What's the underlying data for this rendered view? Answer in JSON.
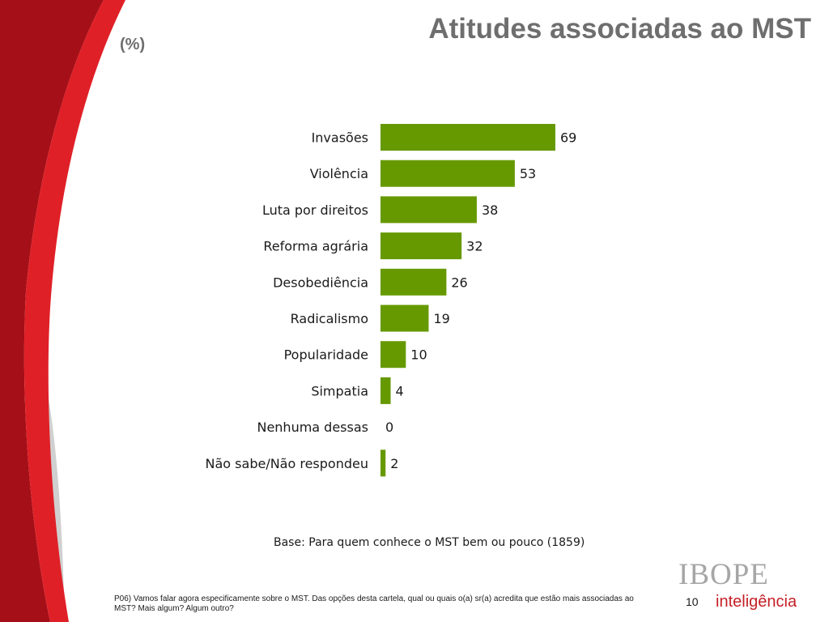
{
  "slide": {
    "title": "Atitudes associadas ao MST",
    "unit_label": "(%)",
    "base_note": "Base: Para quem conhece o MST bem ou pouco (1859)",
    "question": "P06) Vamos falar agora especificamente sobre o MST. Das opções desta cartela, qual ou quais o(a) sr(a) acredita que estão mais associadas ao MST? Mais algum? Algum outro?",
    "page_number": "10"
  },
  "logo": {
    "top": "IBOPE",
    "bottom": "inteligência"
  },
  "colors": {
    "bar": "#669900",
    "title": "#6e6e6e",
    "brand_red": "#c41f25",
    "ribbon_dark_red": "#a50f18",
    "ribbon_gray": "#c8c8c8"
  },
  "chart_data": {
    "type": "bar",
    "orientation": "horizontal",
    "categories": [
      "Invasões",
      "Violência",
      "Luta por direitos",
      "Reforma agrária",
      "Desobediência",
      "Radicalismo",
      "Popularidade",
      "Simpatia",
      "Nenhuma dessas",
      "Não sabe/Não respondeu"
    ],
    "values": [
      69,
      53,
      38,
      32,
      26,
      19,
      10,
      4,
      0,
      2
    ],
    "data_labels": [
      "69",
      "53",
      "38",
      "32",
      "26",
      "19",
      "10",
      "4",
      "0",
      "2"
    ],
    "xlim": [
      0,
      100
    ],
    "grid": false,
    "legend": false
  }
}
